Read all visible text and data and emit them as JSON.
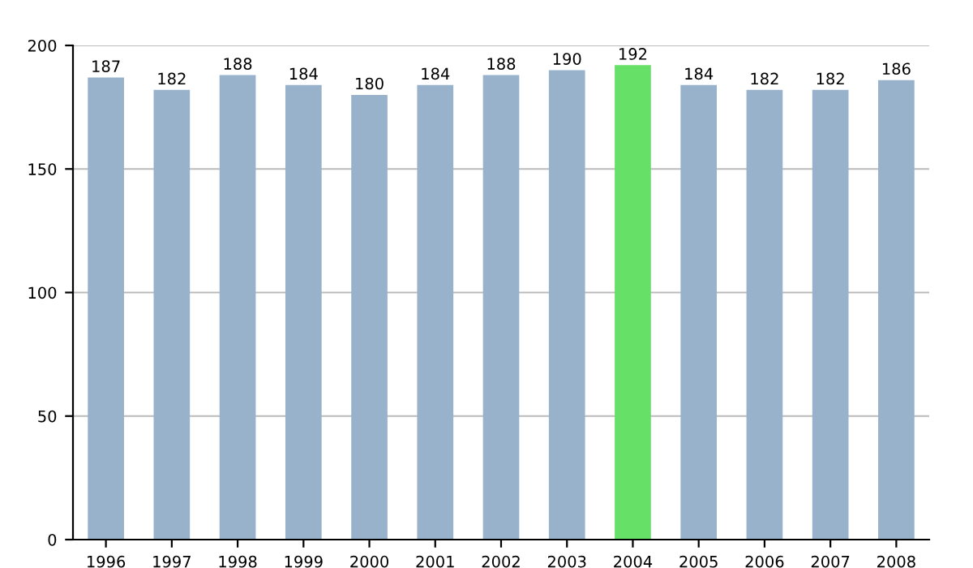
{
  "chart_data": {
    "type": "bar",
    "categories": [
      "1996",
      "1997",
      "1998",
      "1999",
      "2000",
      "2001",
      "2002",
      "2003",
      "2004",
      "2005",
      "2006",
      "2007",
      "2008"
    ],
    "values": [
      187,
      182,
      188,
      184,
      180,
      184,
      188,
      190,
      192,
      184,
      182,
      182,
      186
    ],
    "colors": [
      "#98b2cb",
      "#98b2cb",
      "#98b2cb",
      "#98b2cb",
      "#98b2cb",
      "#98b2cb",
      "#98b2cb",
      "#98b2cb",
      "#66e066",
      "#98b2cb",
      "#98b2cb",
      "#98b2cb",
      "#98b2cb"
    ],
    "ylim": [
      0,
      200
    ],
    "yticks": [
      0,
      50,
      100,
      150,
      200
    ],
    "grid": "y",
    "data_labels": true
  }
}
